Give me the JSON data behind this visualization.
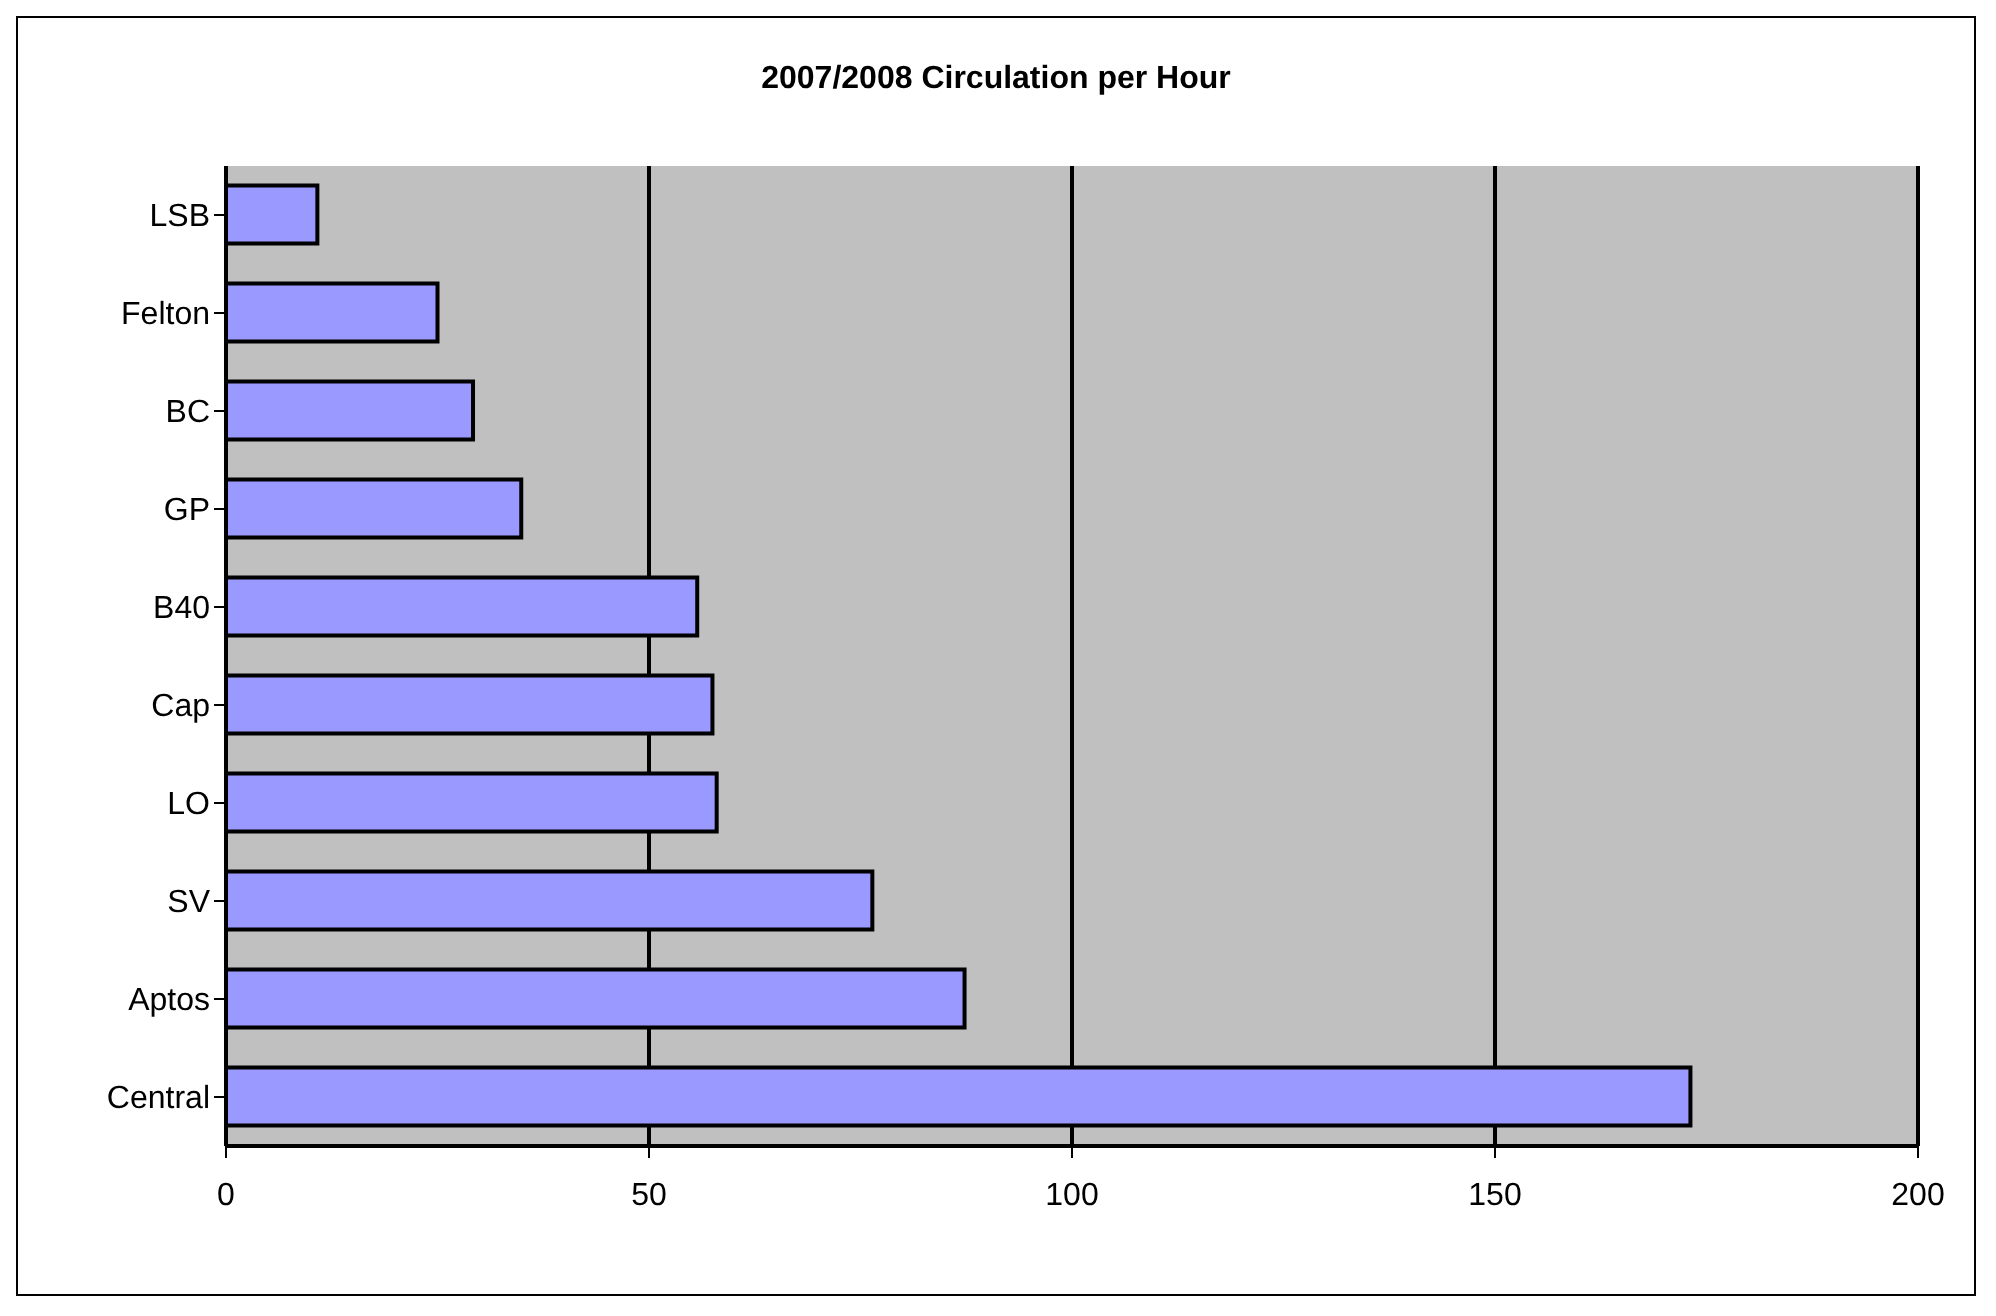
{
  "chart_data": {
    "type": "bar",
    "orientation": "horizontal",
    "title": "2007/2008 Circulation per Hour",
    "categories": [
      "LSB",
      "Felton",
      "BC",
      "GP",
      "B40",
      "Cap",
      "LO",
      "SV",
      "Aptos",
      "Central"
    ],
    "values": [
      10.8,
      25,
      29.2,
      34.9,
      55.7,
      57.5,
      58,
      76.4,
      87.3,
      173.1
    ],
    "color": "#9999ff",
    "xlim": [
      0,
      200
    ],
    "xticks": [
      0,
      50,
      100,
      150,
      200
    ],
    "grid": "x"
  }
}
